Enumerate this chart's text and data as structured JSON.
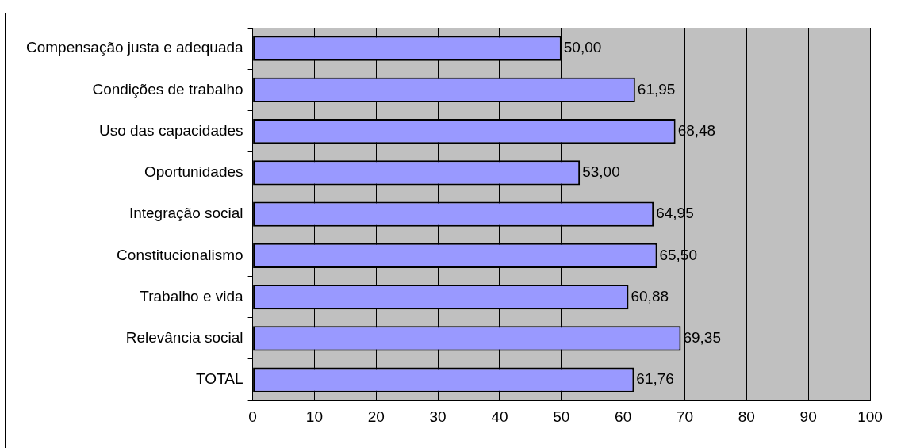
{
  "chart_data": {
    "type": "bar",
    "orientation": "horizontal",
    "categories": [
      "Compensação justa e adequada",
      "Condições de trabalho",
      "Uso das capacidades",
      "Oportunidades",
      "Integração social",
      "Constitucionalismo",
      "Trabalho e vida",
      "Relevância social",
      "TOTAL"
    ],
    "values": [
      50.0,
      61.95,
      68.48,
      53.0,
      64.95,
      65.5,
      60.88,
      69.35,
      61.76
    ],
    "value_labels": [
      "50,00",
      "61,95",
      "68,48",
      "53,00",
      "64,95",
      "65,50",
      "60,88",
      "69,35",
      "61,76"
    ],
    "color": "#9999ff",
    "xlim": [
      0,
      100
    ],
    "xticks": [
      0,
      10,
      20,
      30,
      40,
      50,
      60,
      70,
      80,
      90,
      100
    ],
    "grid": "x",
    "legend": false
  }
}
